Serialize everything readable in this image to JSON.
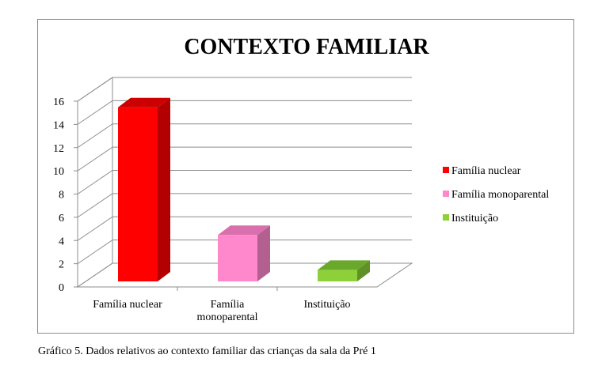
{
  "chart_data": {
    "type": "bar",
    "title": "CONTEXTO FAMILIAR",
    "categories": [
      "Família nuclear",
      "Família\nmonoparental",
      "Instituição"
    ],
    "values": [
      15,
      4,
      1
    ],
    "ylim": [
      0,
      16
    ],
    "yticks": [
      0,
      2,
      4,
      6,
      8,
      10,
      12,
      14,
      16
    ],
    "grid": true,
    "legend_position": "right",
    "style_3d": true,
    "legend": [
      {
        "label": "Família nuclear",
        "color": "#ff0000"
      },
      {
        "label": "Família monoparental",
        "color": "#ff88cc"
      },
      {
        "label": "Instituição",
        "color": "#8ed03a"
      }
    ],
    "colors": {
      "front": [
        "#ff0000",
        "#ff88cc",
        "#8ed03a"
      ],
      "side": [
        "#b20000",
        "#b35f8f",
        "#5f9127"
      ],
      "top": [
        "#cc0000",
        "#d96fad",
        "#6aa82c"
      ]
    }
  },
  "caption": "Gráfico 5. Dados relativos ao contexto familiar das crianças da sala da Pré 1"
}
